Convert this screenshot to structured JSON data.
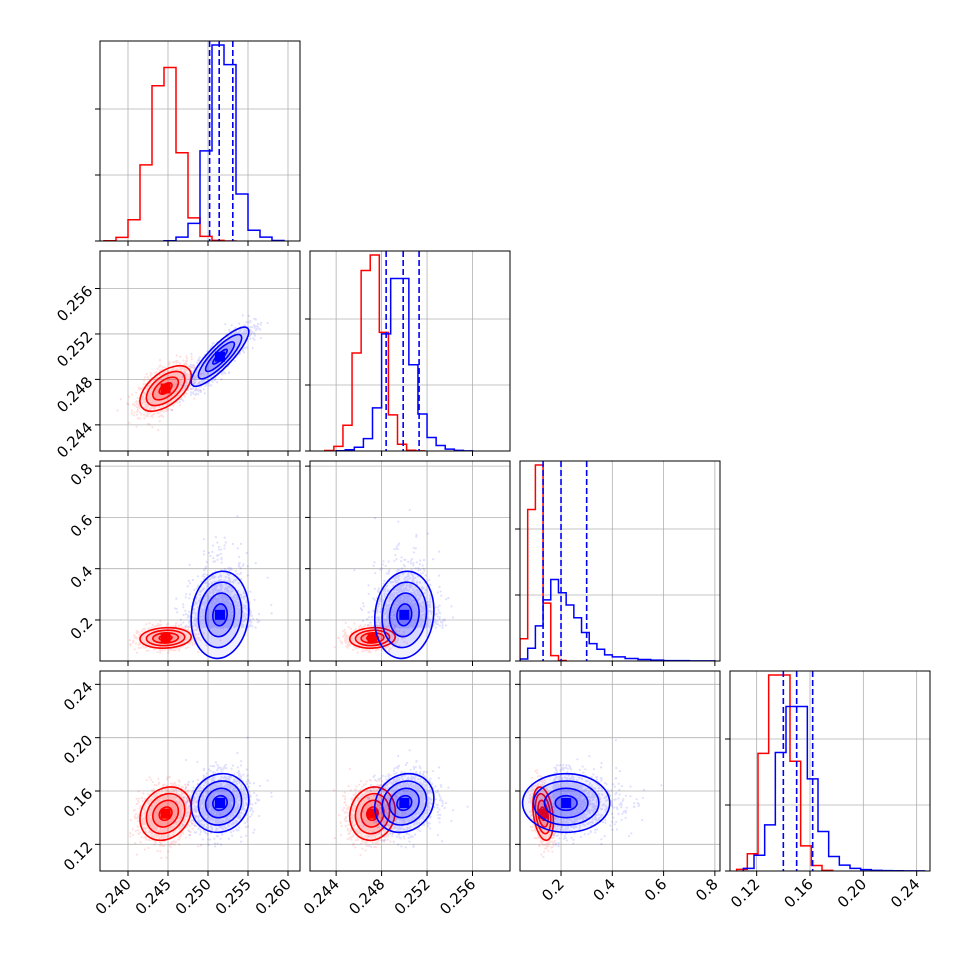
{
  "chart_data": {
    "type": "corner",
    "grid": true,
    "colors": {
      "series_a": "#ff0000",
      "series_b": "#0000ff"
    },
    "parameters": [
      {
        "range": [
          0.2365,
          0.2615
        ],
        "ticks": [
          0.24,
          0.245,
          0.25,
          0.255,
          0.26
        ],
        "tick_labels": [
          "0.240",
          "0.245",
          "0.250",
          "0.255",
          "0.260"
        ]
      },
      {
        "range": [
          0.2417,
          0.2593
        ],
        "ticks": [
          0.244,
          0.248,
          0.252,
          0.256
        ],
        "tick_labels": [
          "0.244",
          "0.248",
          "0.252",
          "0.256"
        ]
      },
      {
        "range": [
          0.04,
          0.82
        ],
        "ticks": [
          0.2,
          0.4,
          0.6,
          0.8
        ],
        "tick_labels": [
          "0.2",
          "0.4",
          "0.6",
          "0.8"
        ]
      },
      {
        "range": [
          0.1,
          0.25
        ],
        "ticks": [
          0.12,
          0.16,
          0.2,
          0.24
        ],
        "tick_labels": [
          "0.12",
          "0.16",
          "0.20",
          "0.24"
        ]
      }
    ],
    "series": [
      {
        "color": "#ff0000",
        "mean": [
          0.2447,
          0.2472,
          0.13,
          0.143
        ],
        "std": [
          0.0016,
          0.001,
          0.02,
          0.01
        ],
        "corr": [
          [
            1,
            0.55,
            0.1,
            0.2
          ],
          [
            0.55,
            1,
            0.1,
            0.1
          ],
          [
            0.1,
            0.1,
            1,
            -0.3
          ],
          [
            0.2,
            0.1,
            -0.3,
            1
          ]
        ],
        "histograms": [
          {
            "bin_edges": [
              0.237,
              0.2385,
              0.24,
              0.2415,
              0.243,
              0.2445,
              0.246,
              0.2475,
              0.249,
              0.2505,
              0.252,
              0.2535
            ],
            "counts": [
              4,
              60,
              350,
              1250,
              2550,
              2850,
              1450,
              380,
              75,
              10,
              1
            ]
          },
          {
            "bin_edges": [
              0.243,
              0.2438,
              0.2446,
              0.2454,
              0.2462,
              0.247,
              0.2478,
              0.2486,
              0.2494,
              0.2502,
              0.251,
              0.2518
            ],
            "counts": [
              10,
              90,
              500,
              1900,
              3500,
              3800,
              2300,
              700,
              130,
              15,
              2
            ]
          },
          {
            "bin_edges": [
              0.04,
              0.07,
              0.1,
              0.13,
              0.16,
              0.19,
              0.22
            ],
            "counts": [
              250,
              1700,
              2200,
              650,
              60,
              5
            ]
          },
          {
            "bin_edges": [
              0.105,
              0.113,
              0.121,
              0.129,
              0.137,
              0.145,
              0.153,
              0.161,
              0.169,
              0.177
            ],
            "counts": [
              20,
              220,
              1500,
              2500,
              2500,
              1400,
              320,
              70,
              8
            ]
          }
        ]
      },
      {
        "color": "#0000ff",
        "mean": [
          0.2515,
          0.25,
          0.22,
          0.151
        ],
        "std": [
          0.0018,
          0.0013,
          0.085,
          0.011
        ],
        "corr": [
          [
            1,
            0.85,
            0.1,
            0.1
          ],
          [
            0.85,
            1,
            0.1,
            0.15
          ],
          [
            0.1,
            0.1,
            1,
            0.0
          ],
          [
            0.1,
            0.15,
            0.0,
            1
          ]
        ],
        "quantiles": [
          [
            0.2502,
            0.2514,
            0.2531
          ],
          [
            0.2484,
            0.2499,
            0.2513
          ],
          [
            0.13,
            0.2,
            0.3
          ],
          [
            0.14,
            0.15,
            0.162
          ]
        ],
        "histograms": [
          {
            "bin_edges": [
              0.2445,
              0.246,
              0.2475,
              0.249,
              0.2505,
              0.252,
              0.2535,
              0.255,
              0.2565,
              0.258,
              0.2595
            ],
            "counts": [
              3,
              40,
              180,
              920,
              2000,
              1800,
              480,
              110,
              40,
              5
            ]
          },
          {
            "bin_edges": [
              0.244,
              0.2448,
              0.2456,
              0.2464,
              0.2472,
              0.248,
              0.2488,
              0.2496,
              0.2504,
              0.2512,
              0.252,
              0.2528,
              0.2536,
              0.2544,
              0.2552,
              0.256
            ],
            "counts": [
              5,
              20,
              60,
              200,
              700,
              1900,
              2800,
              2800,
              1400,
              600,
              220,
              90,
              30,
              10,
              3
            ]
          },
          {
            "bin_edges": [
              0.04,
              0.07,
              0.1,
              0.13,
              0.16,
              0.19,
              0.22,
              0.25,
              0.28,
              0.31,
              0.34,
              0.37,
              0.4,
              0.45,
              0.5,
              0.55,
              0.6,
              0.7,
              0.8
            ],
            "counts": [
              40,
              250,
              690,
              1200,
              1600,
              1340,
              1100,
              850,
              560,
              340,
              230,
              120,
              80,
              50,
              30,
              16,
              8,
              3
            ]
          },
          {
            "bin_edges": [
              0.11,
              0.118,
              0.126,
              0.134,
              0.142,
              0.15,
              0.158,
              0.166,
              0.174,
              0.182,
              0.19,
              0.198,
              0.206,
              0.214,
              0.222,
              0.23,
              0.238,
              0.246
            ],
            "counts": [
              40,
              240,
              700,
              1800,
              2500,
              2500,
              1400,
              600,
              220,
              90,
              40,
              20,
              10,
              5,
              3,
              2,
              1
            ]
          }
        ]
      }
    ]
  }
}
